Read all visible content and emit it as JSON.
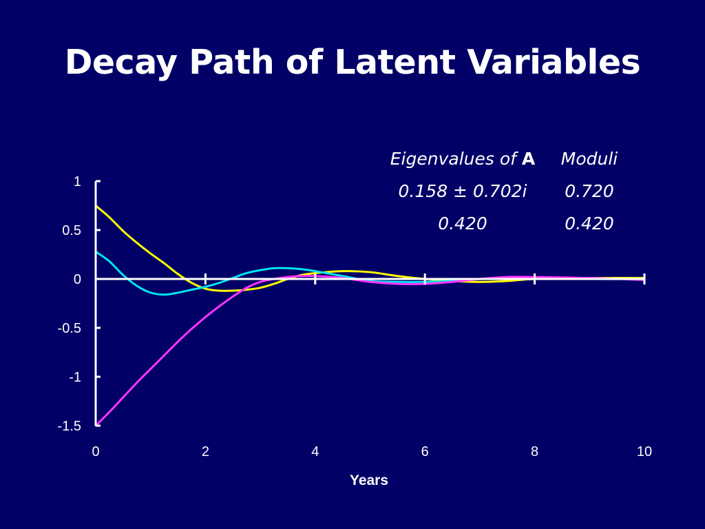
{
  "title": "Decay Path of Latent Variables",
  "eigen_table": {
    "header": {
      "col1_prefix": "Eigenvalues of ",
      "col1_bold": "A",
      "col2": "Moduli"
    },
    "rows": [
      {
        "eigenvalue": "0.158 ±  0.702i",
        "modulus": "0.720"
      },
      {
        "eigenvalue": "0.420",
        "modulus": "0.420"
      }
    ]
  },
  "chart_data": {
    "type": "line",
    "title": "Decay Path of Latent Variables",
    "xlabel": "Years",
    "ylabel": "",
    "xlim": [
      0,
      10
    ],
    "ylim": [
      -1.5,
      1
    ],
    "xticks": [
      0,
      2,
      4,
      6,
      8,
      10
    ],
    "xtick_labels": [
      "0",
      "2",
      "4",
      "6",
      "8",
      "10"
    ],
    "yticks": [
      1,
      0.5,
      0,
      -0.5,
      -1,
      -1.5
    ],
    "ytick_labels": [
      "1",
      "0.5",
      "0",
      "-0.5",
      "-1",
      "-1.5"
    ],
    "grid": false,
    "legend": "none",
    "series": [
      {
        "name": "yellow",
        "color": "#ffff00",
        "x": [
          0,
          0.25,
          0.5,
          0.75,
          1,
          1.25,
          1.5,
          1.75,
          2,
          2.25,
          2.5,
          2.75,
          3,
          3.25,
          3.5,
          3.75,
          4,
          4.5,
          5,
          5.5,
          6,
          6.5,
          7,
          7.5,
          8,
          9,
          10
        ],
        "y": [
          0.75,
          0.63,
          0.49,
          0.37,
          0.26,
          0.16,
          0.05,
          -0.04,
          -0.1,
          -0.12,
          -0.12,
          -0.11,
          -0.09,
          -0.05,
          0.0,
          0.04,
          0.06,
          0.08,
          0.07,
          0.03,
          0.0,
          -0.02,
          -0.03,
          -0.02,
          0.0,
          0.01,
          0.01
        ]
      },
      {
        "name": "cyan",
        "color": "#00e5ee",
        "x": [
          0,
          0.25,
          0.5,
          0.75,
          1,
          1.25,
          1.5,
          1.75,
          2,
          2.25,
          2.5,
          2.75,
          3,
          3.25,
          3.5,
          3.75,
          4,
          4.5,
          5,
          5.5,
          6,
          6.5,
          7,
          7.5,
          8,
          9,
          10
        ],
        "y": [
          0.28,
          0.18,
          0.04,
          -0.07,
          -0.14,
          -0.16,
          -0.14,
          -0.11,
          -0.08,
          -0.04,
          0.01,
          0.06,
          0.09,
          0.11,
          0.11,
          0.1,
          0.08,
          0.03,
          -0.02,
          -0.03,
          -0.03,
          -0.02,
          0.0,
          0.01,
          0.01,
          0.0,
          0.0
        ]
      },
      {
        "name": "magenta",
        "color": "#ff33ff",
        "x": [
          0,
          0.25,
          0.5,
          0.75,
          1,
          1.25,
          1.5,
          1.75,
          2,
          2.25,
          2.5,
          2.75,
          3,
          3.25,
          3.5,
          3.75,
          4,
          4.5,
          5,
          5.5,
          6,
          6.5,
          7,
          7.5,
          8,
          9,
          10
        ],
        "y": [
          -1.5,
          -1.36,
          -1.21,
          -1.06,
          -0.92,
          -0.78,
          -0.64,
          -0.51,
          -0.39,
          -0.28,
          -0.18,
          -0.09,
          -0.03,
          0.0,
          0.02,
          0.03,
          0.03,
          0.01,
          -0.03,
          -0.05,
          -0.05,
          -0.03,
          0.0,
          0.02,
          0.02,
          0.01,
          -0.01
        ]
      }
    ]
  }
}
